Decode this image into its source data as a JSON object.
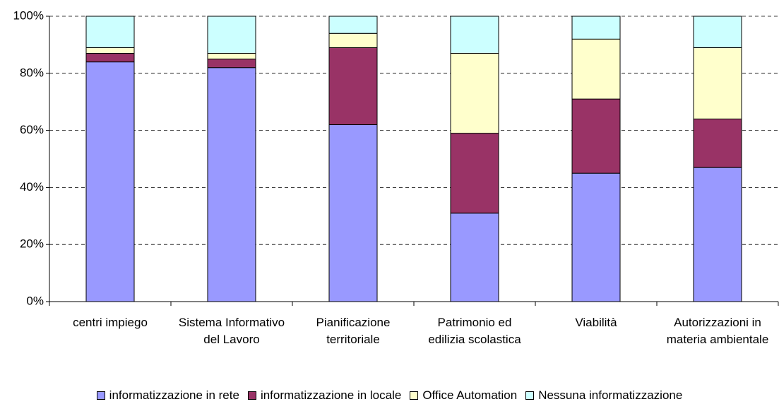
{
  "chart_data": {
    "type": "stacked_bar_percent",
    "categories": [
      "centri impiego",
      "Sistema Informativo del Lavoro",
      "Pianificazione territoriale",
      "Patrimonio ed edilizia scolastica",
      "Viabilità",
      "Autorizzazioni in materia ambientale"
    ],
    "series": [
      {
        "name": "informatizzazione in rete",
        "color": "#9999ff",
        "values": [
          84,
          82,
          62,
          31,
          45,
          47
        ]
      },
      {
        "name": "informatizzazione in locale",
        "color": "#993366",
        "values": [
          3,
          3,
          27,
          28,
          26,
          17
        ]
      },
      {
        "name": "Office Automation",
        "color": "#ffffcc",
        "values": [
          2,
          2,
          5,
          28,
          21,
          25
        ]
      },
      {
        "name": "Nessuna informatizzazione",
        "color": "#ccffff",
        "values": [
          11,
          13,
          6,
          13,
          8,
          11
        ]
      }
    ],
    "ylim": [
      0,
      100
    ],
    "yticks": [
      {
        "value": 0,
        "label": "0%"
      },
      {
        "value": 20,
        "label": "20%"
      },
      {
        "value": 40,
        "label": "40%"
      },
      {
        "value": 60,
        "label": "60%"
      },
      {
        "value": 80,
        "label": "80%"
      },
      {
        "value": 100,
        "label": "100%"
      }
    ],
    "grid": true,
    "legend": "bottom"
  }
}
